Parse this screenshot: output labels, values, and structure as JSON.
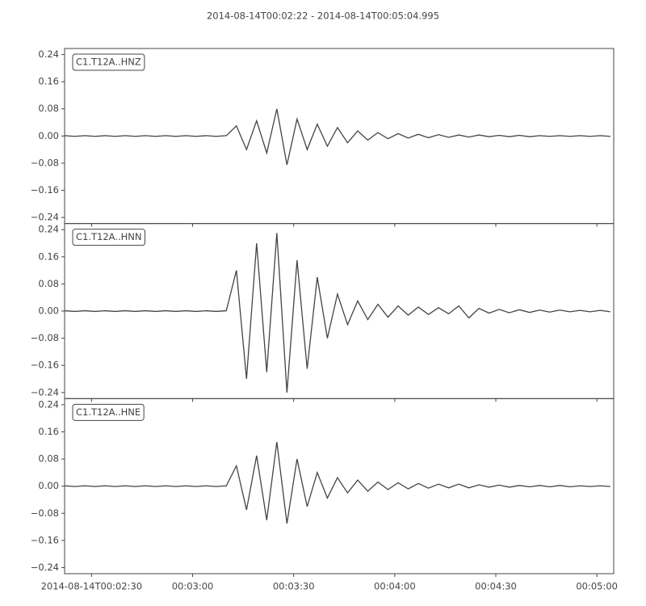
{
  "chart_data": {
    "type": "line",
    "subplots": true,
    "title": "2014-08-14T00:02:22  -  2014-08-14T00:05:04.995",
    "xlim": [
      "2014-08-14T00:02:22",
      "2014-08-14T00:05:04.995"
    ],
    "xticks": [
      {
        "value": "2014-08-14T00:02:30",
        "label": "2014-08-14T00:02:30"
      },
      {
        "value": "2014-08-14T00:03:00",
        "label": "00:03:00"
      },
      {
        "value": "2014-08-14T00:03:30",
        "label": "00:03:30"
      },
      {
        "value": "2014-08-14T00:04:00",
        "label": "00:04:00"
      },
      {
        "value": "2014-08-14T00:04:30",
        "label": "00:04:30"
      },
      {
        "value": "2014-08-14T00:05:00",
        "label": "00:05:00"
      }
    ],
    "ylim": [
      -0.258,
      0.258
    ],
    "yticks": [
      {
        "value": -0.24,
        "label": "−0.24"
      },
      {
        "value": -0.16,
        "label": "−0.16"
      },
      {
        "value": -0.08,
        "label": "−0.08"
      },
      {
        "value": 0,
        "label": "0.00"
      },
      0.08,
      0.16,
      0.24
    ],
    "x": [
      "2014-08-14T00:02:22",
      "2014-08-14T00:02:25",
      "2014-08-14T00:02:28",
      "2014-08-14T00:02:31",
      "2014-08-14T00:02:34",
      "2014-08-14T00:02:37",
      "2014-08-14T00:02:40",
      "2014-08-14T00:02:43",
      "2014-08-14T00:02:46",
      "2014-08-14T00:02:49",
      "2014-08-14T00:02:52",
      "2014-08-14T00:02:55",
      "2014-08-14T00:02:58",
      "2014-08-14T00:03:01",
      "2014-08-14T00:03:04",
      "2014-08-14T00:03:07",
      "2014-08-14T00:03:10",
      "2014-08-14T00:03:13",
      "2014-08-14T00:03:16",
      "2014-08-14T00:03:19",
      "2014-08-14T00:03:22",
      "2014-08-14T00:03:25",
      "2014-08-14T00:03:28",
      "2014-08-14T00:03:31",
      "2014-08-14T00:03:34",
      "2014-08-14T00:03:37",
      "2014-08-14T00:03:40",
      "2014-08-14T00:03:43",
      "2014-08-14T00:03:46",
      "2014-08-14T00:03:49",
      "2014-08-14T00:03:52",
      "2014-08-14T00:03:55",
      "2014-08-14T00:03:58",
      "2014-08-14T00:04:01",
      "2014-08-14T00:04:04",
      "2014-08-14T00:04:07",
      "2014-08-14T00:04:10",
      "2014-08-14T00:04:13",
      "2014-08-14T00:04:16",
      "2014-08-14T00:04:19",
      "2014-08-14T00:04:22",
      "2014-08-14T00:04:25",
      "2014-08-14T00:04:28",
      "2014-08-14T00:04:31",
      "2014-08-14T00:04:34",
      "2014-08-14T00:04:37",
      "2014-08-14T00:04:40",
      "2014-08-14T00:04:43",
      "2014-08-14T00:04:46",
      "2014-08-14T00:04:49",
      "2014-08-14T00:04:52",
      "2014-08-14T00:04:55",
      "2014-08-14T00:04:58",
      "2014-08-14T00:05:01",
      "2014-08-14T00:05:04"
    ],
    "series": [
      {
        "name": "C1.T12A..HNZ",
        "color": "#444444",
        "values": [
          0.001,
          -0.001,
          0.001,
          -0.001,
          0.001,
          -0.001,
          0.001,
          -0.001,
          0.001,
          -0.001,
          0.001,
          -0.001,
          0.001,
          -0.001,
          0.001,
          -0.001,
          0.001,
          0.03,
          -0.04,
          0.045,
          -0.05,
          0.08,
          -0.085,
          0.05,
          -0.04,
          0.035,
          -0.03,
          0.025,
          -0.02,
          0.015,
          -0.012,
          0.01,
          -0.008,
          0.007,
          -0.006,
          0.005,
          -0.005,
          0.004,
          -0.004,
          0.003,
          -0.003,
          0.003,
          -0.002,
          0.002,
          -0.002,
          0.002,
          -0.002,
          0.001,
          -0.001,
          0.001,
          -0.001,
          0.001,
          -0.001,
          0.001,
          -0.001
        ]
      },
      {
        "name": "C1.T12A..HNN",
        "color": "#444444",
        "values": [
          0.001,
          -0.001,
          0.001,
          -0.001,
          0.001,
          -0.001,
          0.001,
          -0.001,
          0.001,
          -0.001,
          0.001,
          -0.001,
          0.001,
          -0.001,
          0.001,
          -0.001,
          0.001,
          0.12,
          -0.2,
          0.2,
          -0.18,
          0.23,
          -0.24,
          0.15,
          -0.17,
          0.1,
          -0.08,
          0.05,
          -0.04,
          0.03,
          -0.025,
          0.02,
          -0.018,
          0.015,
          -0.012,
          0.012,
          -0.01,
          0.01,
          -0.008,
          0.015,
          -0.02,
          0.008,
          -0.006,
          0.005,
          -0.005,
          0.004,
          -0.004,
          0.003,
          -0.003,
          0.003,
          -0.002,
          0.002,
          -0.002,
          0.002,
          -0.002
        ]
      },
      {
        "name": "C1.T12A..HNE",
        "color": "#444444",
        "values": [
          0.001,
          -0.001,
          0.001,
          -0.001,
          0.001,
          -0.001,
          0.001,
          -0.001,
          0.001,
          -0.001,
          0.001,
          -0.001,
          0.001,
          -0.001,
          0.001,
          -0.001,
          0.001,
          0.06,
          -0.07,
          0.09,
          -0.1,
          0.13,
          -0.11,
          0.08,
          -0.06,
          0.04,
          -0.035,
          0.025,
          -0.02,
          0.018,
          -0.015,
          0.012,
          -0.01,
          0.01,
          -0.008,
          0.008,
          -0.006,
          0.006,
          -0.005,
          0.006,
          -0.005,
          0.004,
          -0.003,
          0.003,
          -0.003,
          0.002,
          -0.002,
          0.002,
          -0.002,
          0.002,
          -0.002,
          0.001,
          -0.001,
          0.001,
          -0.001
        ]
      }
    ]
  }
}
